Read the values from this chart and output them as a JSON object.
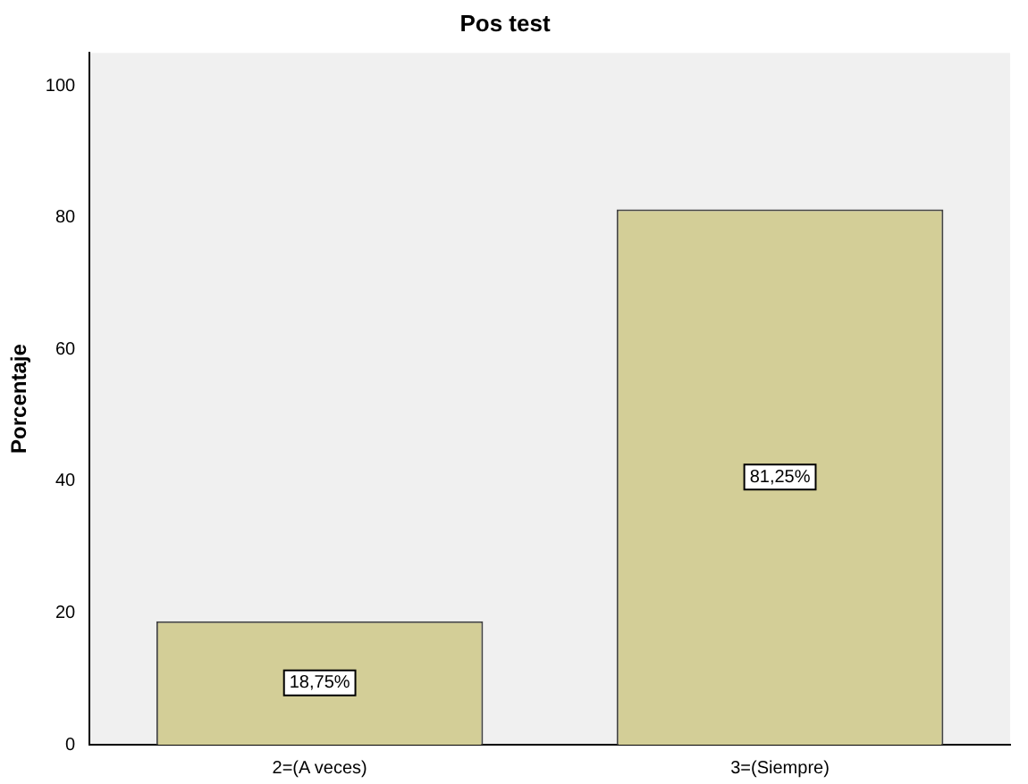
{
  "chart_data": {
    "type": "bar",
    "title": "Pos test",
    "ylabel": "Porcentaje",
    "categories": [
      "2=(A veces)",
      "3=(Siempre)"
    ],
    "values": [
      18.75,
      81.25
    ],
    "value_labels": [
      "18,75%",
      "81,25%"
    ],
    "color": "#d3ce97",
    "ylim": [
      0,
      105
    ],
    "yticks": [
      0,
      20,
      40,
      60,
      80,
      100
    ]
  }
}
